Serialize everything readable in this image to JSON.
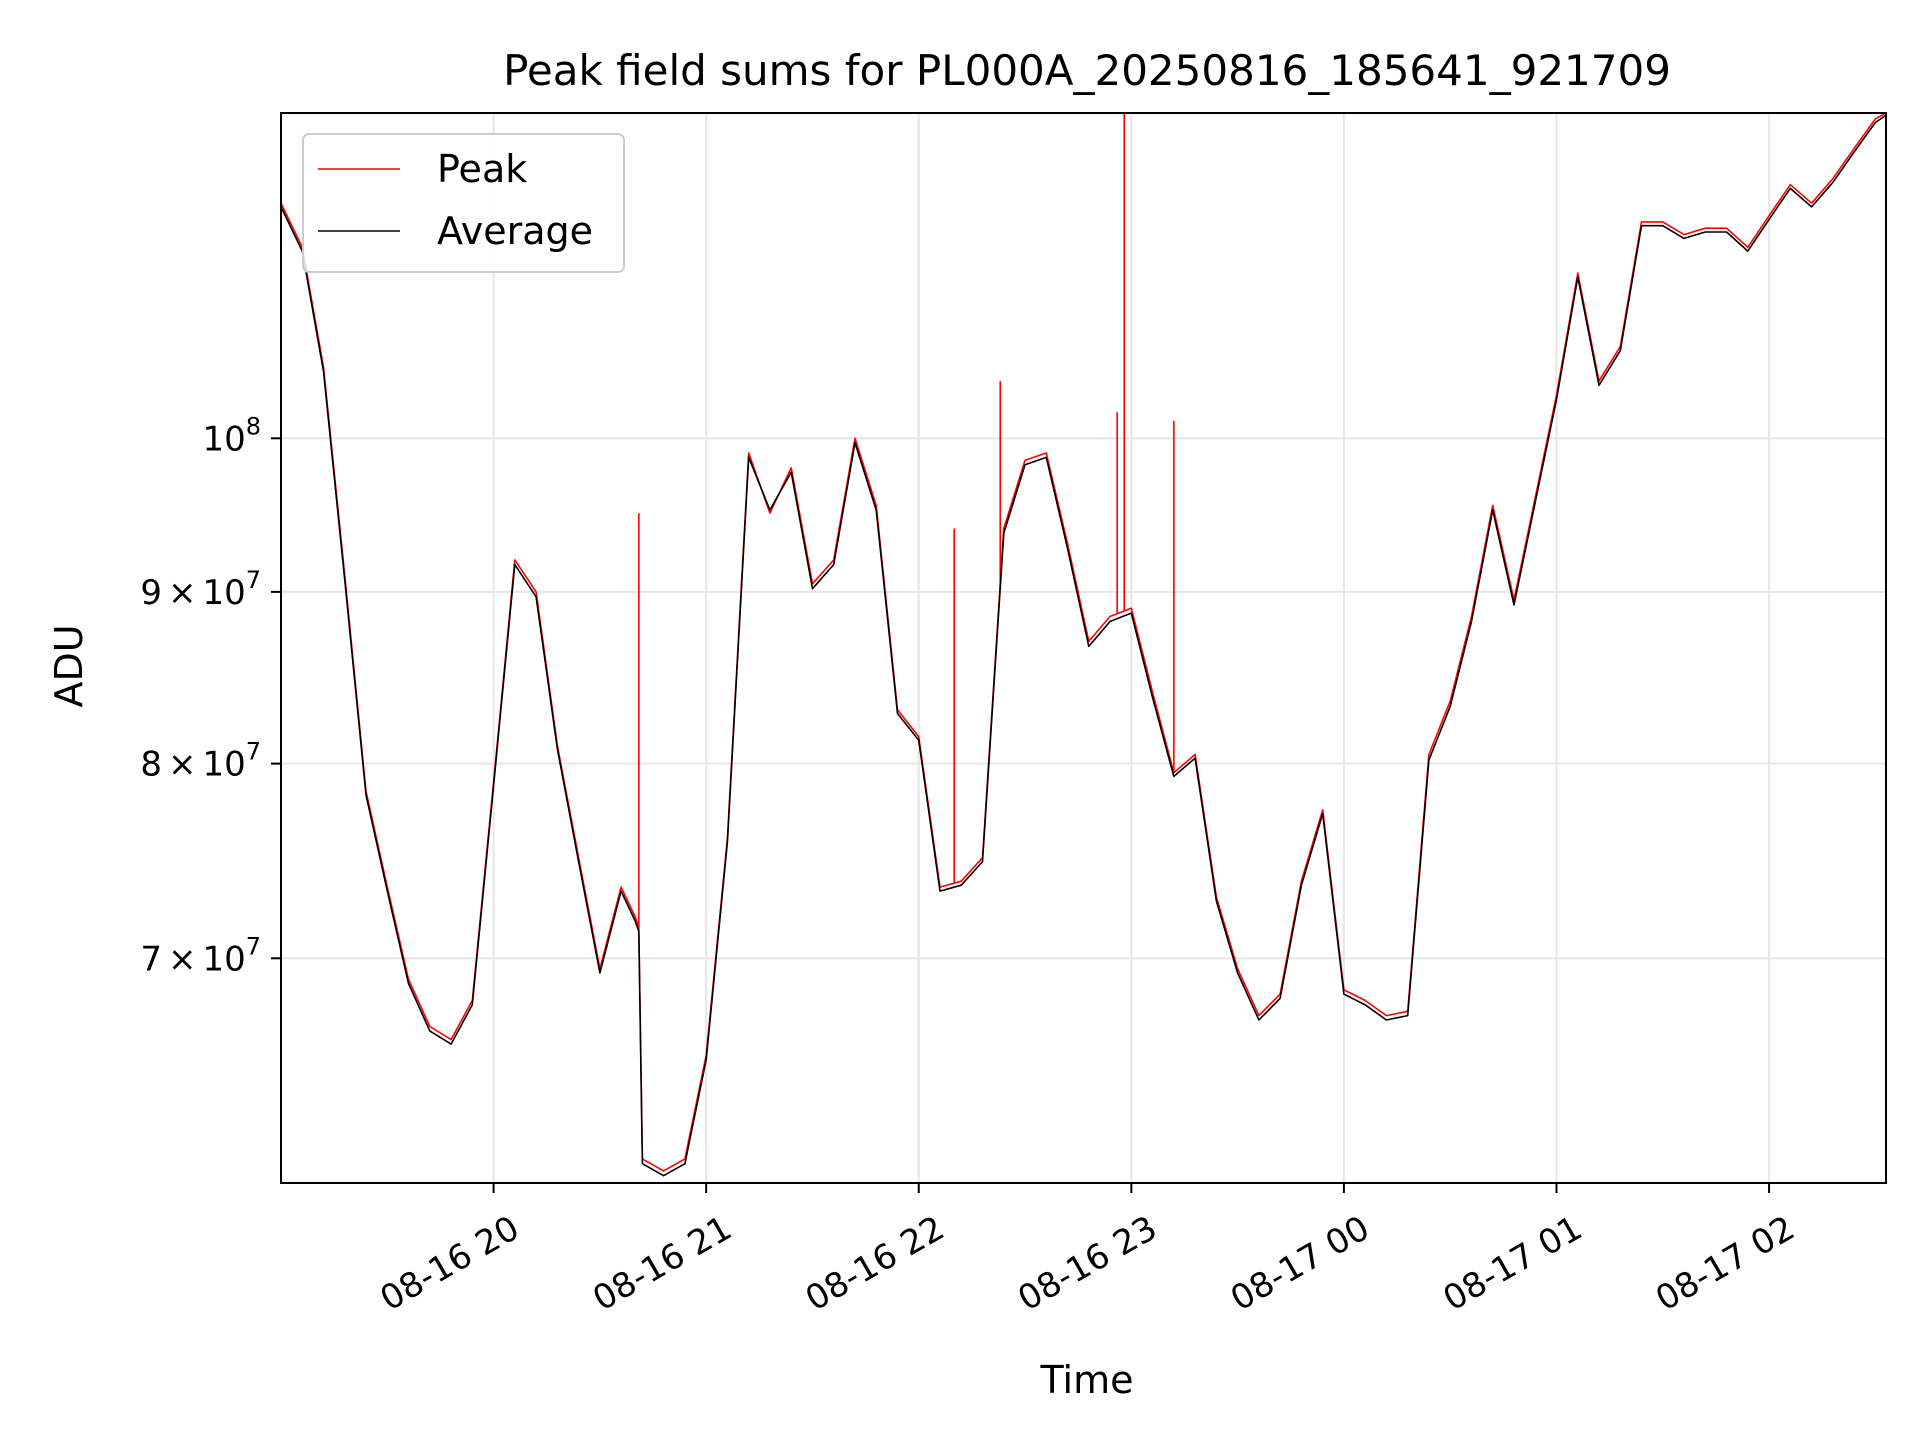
{
  "chart_data": {
    "type": "line",
    "title": "Peak field sums for PL000A_20250816_185641_921709",
    "xlabel": "Time",
    "ylabel": "ADU",
    "yscale": "log",
    "ylim": [
      60000000,
      125000000
    ],
    "xlim": [
      "2025-08-16 19:00",
      "2025-08-17 02:33"
    ],
    "grid": true,
    "legend_position": "top-left",
    "x_ticks": [
      {
        "value": "2025-08-16 20:00",
        "label": "08-16 20"
      },
      {
        "value": "2025-08-16 21:00",
        "label": "08-16 21"
      },
      {
        "value": "2025-08-16 22:00",
        "label": "08-16 22"
      },
      {
        "value": "2025-08-16 23:00",
        "label": "08-16 23"
      },
      {
        "value": "2025-08-17 00:00",
        "label": "08-17 00"
      },
      {
        "value": "2025-08-17 01:00",
        "label": "08-17 01"
      },
      {
        "value": "2025-08-17 02:00",
        "label": "08-17 02"
      }
    ],
    "y_ticks": [
      {
        "value": 70000000,
        "mantissa": "7",
        "exponent": "7"
      },
      {
        "value": 80000000,
        "mantissa": "8",
        "exponent": "7"
      },
      {
        "value": 90000000,
        "mantissa": "9",
        "exponent": "7"
      },
      {
        "value": 100000000,
        "mantissa": "",
        "exponent": "8"
      }
    ],
    "series": [
      {
        "name": "Peak",
        "color": "#ff0000",
        "x": [
          "2025-08-16 19:00",
          "2025-08-16 19:06",
          "2025-08-16 19:12",
          "2025-08-16 19:18",
          "2025-08-16 19:24",
          "2025-08-16 19:30",
          "2025-08-16 19:36",
          "2025-08-16 19:42",
          "2025-08-16 19:48",
          "2025-08-16 19:54",
          "2025-08-16 20:00",
          "2025-08-16 20:06",
          "2025-08-16 20:12",
          "2025-08-16 20:18",
          "2025-08-16 20:24",
          "2025-08-16 20:30",
          "2025-08-16 20:36",
          "2025-08-16 20:40",
          "2025-08-16 20:41",
          "2025-08-16 20:42",
          "2025-08-16 20:48",
          "2025-08-16 20:54",
          "2025-08-16 21:00",
          "2025-08-16 21:06",
          "2025-08-16 21:12",
          "2025-08-16 21:18",
          "2025-08-16 21:24",
          "2025-08-16 21:30",
          "2025-08-16 21:36",
          "2025-08-16 21:42",
          "2025-08-16 21:48",
          "2025-08-16 21:54",
          "2025-08-16 22:00",
          "2025-08-16 22:06",
          "2025-08-16 22:12",
          "2025-08-16 22:18",
          "2025-08-16 22:24",
          "2025-08-16 22:30",
          "2025-08-16 22:36",
          "2025-08-16 22:42",
          "2025-08-16 22:48",
          "2025-08-16 22:54",
          "2025-08-16 23:00",
          "2025-08-16 23:06",
          "2025-08-16 23:12",
          "2025-08-16 23:18",
          "2025-08-16 23:24",
          "2025-08-16 23:30",
          "2025-08-16 23:36",
          "2025-08-16 23:42",
          "2025-08-16 23:48",
          "2025-08-16 23:54",
          "2025-08-17 00:00",
          "2025-08-17 00:06",
          "2025-08-17 00:12",
          "2025-08-17 00:18",
          "2025-08-17 00:24",
          "2025-08-17 00:30",
          "2025-08-17 00:36",
          "2025-08-17 00:42",
          "2025-08-17 00:48",
          "2025-08-17 00:54",
          "2025-08-17 01:00",
          "2025-08-17 01:06",
          "2025-08-17 01:12",
          "2025-08-17 01:18",
          "2025-08-17 01:24",
          "2025-08-17 01:30",
          "2025-08-17 01:36",
          "2025-08-17 01:42",
          "2025-08-17 01:48",
          "2025-08-17 01:54",
          "2025-08-17 02:00",
          "2025-08-17 02:06",
          "2025-08-17 02:12",
          "2025-08-17 02:18",
          "2025-08-17 02:24",
          "2025-08-17 02:30",
          "2025-08-17 02:33"
        ],
        "y": [
          117500000,
          114000000,
          105000000,
          91000000,
          78500000,
          73500000,
          69000000,
          66800000,
          66200000,
          68000000,
          79000000,
          92000000,
          90000000,
          81000000,
          75000000,
          69500000,
          73500000,
          72000000,
          71500000,
          61000000,
          60500000,
          61000000,
          65500000,
          76000000,
          99000000,
          95000000,
          98000000,
          90500000,
          92000000,
          100000000,
          95500000,
          83000000,
          81500000,
          73500000,
          73800000,
          75000000,
          94000000,
          98500000,
          99000000,
          93000000,
          87000000,
          88500000,
          89000000,
          84000000,
          79500000,
          80500000,
          73000000,
          69500000,
          67300000,
          68300000,
          73800000,
          77500000,
          68500000,
          68000000,
          67300000,
          67500000,
          80500000,
          83500000,
          88500000,
          95500000,
          89500000,
          96000000,
          103000000,
          112000000,
          104000000,
          106500000,
          116000000,
          116000000,
          115000000,
          115500000,
          115500000,
          114000000,
          116500000,
          119000000,
          117500000,
          119500000,
          122000000,
          124500000,
          125000000
        ],
        "spikes": [
          {
            "x": "2025-08-16 20:41",
            "y": 95000000
          },
          {
            "x": "2025-08-16 22:10",
            "y": 94000000
          },
          {
            "x": "2025-08-16 22:23",
            "y": 104000000
          },
          {
            "x": "2025-08-16 22:56",
            "y": 101800000
          },
          {
            "x": "2025-08-16 22:58",
            "y": 125000000
          },
          {
            "x": "2025-08-16 23:12",
            "y": 101200000
          }
        ]
      },
      {
        "name": "Average",
        "color": "#000000",
        "x": [
          "2025-08-16 19:00",
          "2025-08-16 19:06",
          "2025-08-16 19:12",
          "2025-08-16 19:18",
          "2025-08-16 19:24",
          "2025-08-16 19:30",
          "2025-08-16 19:36",
          "2025-08-16 19:42",
          "2025-08-16 19:48",
          "2025-08-16 19:54",
          "2025-08-16 20:00",
          "2025-08-16 20:06",
          "2025-08-16 20:12",
          "2025-08-16 20:18",
          "2025-08-16 20:24",
          "2025-08-16 20:30",
          "2025-08-16 20:36",
          "2025-08-16 20:40",
          "2025-08-16 20:41",
          "2025-08-16 20:42",
          "2025-08-16 20:48",
          "2025-08-16 20:54",
          "2025-08-16 21:00",
          "2025-08-16 21:06",
          "2025-08-16 21:12",
          "2025-08-16 21:18",
          "2025-08-16 21:24",
          "2025-08-16 21:30",
          "2025-08-16 21:36",
          "2025-08-16 21:42",
          "2025-08-16 21:48",
          "2025-08-16 21:54",
          "2025-08-16 22:00",
          "2025-08-16 22:06",
          "2025-08-16 22:12",
          "2025-08-16 22:18",
          "2025-08-16 22:24",
          "2025-08-16 22:30",
          "2025-08-16 22:36",
          "2025-08-16 22:42",
          "2025-08-16 22:48",
          "2025-08-16 22:54",
          "2025-08-16 23:00",
          "2025-08-16 23:06",
          "2025-08-16 23:12",
          "2025-08-16 23:18",
          "2025-08-16 23:24",
          "2025-08-16 23:30",
          "2025-08-16 23:36",
          "2025-08-16 23:42",
          "2025-08-16 23:48",
          "2025-08-16 23:54",
          "2025-08-17 00:00",
          "2025-08-17 00:06",
          "2025-08-17 00:12",
          "2025-08-17 00:18",
          "2025-08-17 00:24",
          "2025-08-17 00:30",
          "2025-08-17 00:36",
          "2025-08-17 00:42",
          "2025-08-17 00:48",
          "2025-08-17 00:54",
          "2025-08-17 01:00",
          "2025-08-17 01:06",
          "2025-08-17 01:12",
          "2025-08-17 01:18",
          "2025-08-17 01:24",
          "2025-08-17 01:30",
          "2025-08-17 01:36",
          "2025-08-17 01:42",
          "2025-08-17 01:48",
          "2025-08-17 01:54",
          "2025-08-17 02:00",
          "2025-08-17 02:06",
          "2025-08-17 02:12",
          "2025-08-17 02:18",
          "2025-08-17 02:24",
          "2025-08-17 02:30",
          "2025-08-17 02:33"
        ],
        "y": [
          117200000,
          113700000,
          104700000,
          90700000,
          78300000,
          73300000,
          68800000,
          66600000,
          66000000,
          67800000,
          78800000,
          91700000,
          89700000,
          80800000,
          74800000,
          69300000,
          73300000,
          71800000,
          71300000,
          60800000,
          60300000,
          60800000,
          65300000,
          75800000,
          98700000,
          95200000,
          97700000,
          90200000,
          91700000,
          99700000,
          95200000,
          82800000,
          81300000,
          73300000,
          73600000,
          74800000,
          93700000,
          98200000,
          98700000,
          92700000,
          86700000,
          88200000,
          88700000,
          83700000,
          79300000,
          80300000,
          72800000,
          69300000,
          67100000,
          68100000,
          73600000,
          77300000,
          68300000,
          67800000,
          67100000,
          67300000,
          80200000,
          83200000,
          88200000,
          95200000,
          89200000,
          95700000,
          102700000,
          111700000,
          103700000,
          106200000,
          115700000,
          115700000,
          114700000,
          115200000,
          115200000,
          113700000,
          116200000,
          118700000,
          117200000,
          119200000,
          121700000,
          124200000,
          124800000
        ]
      }
    ]
  }
}
